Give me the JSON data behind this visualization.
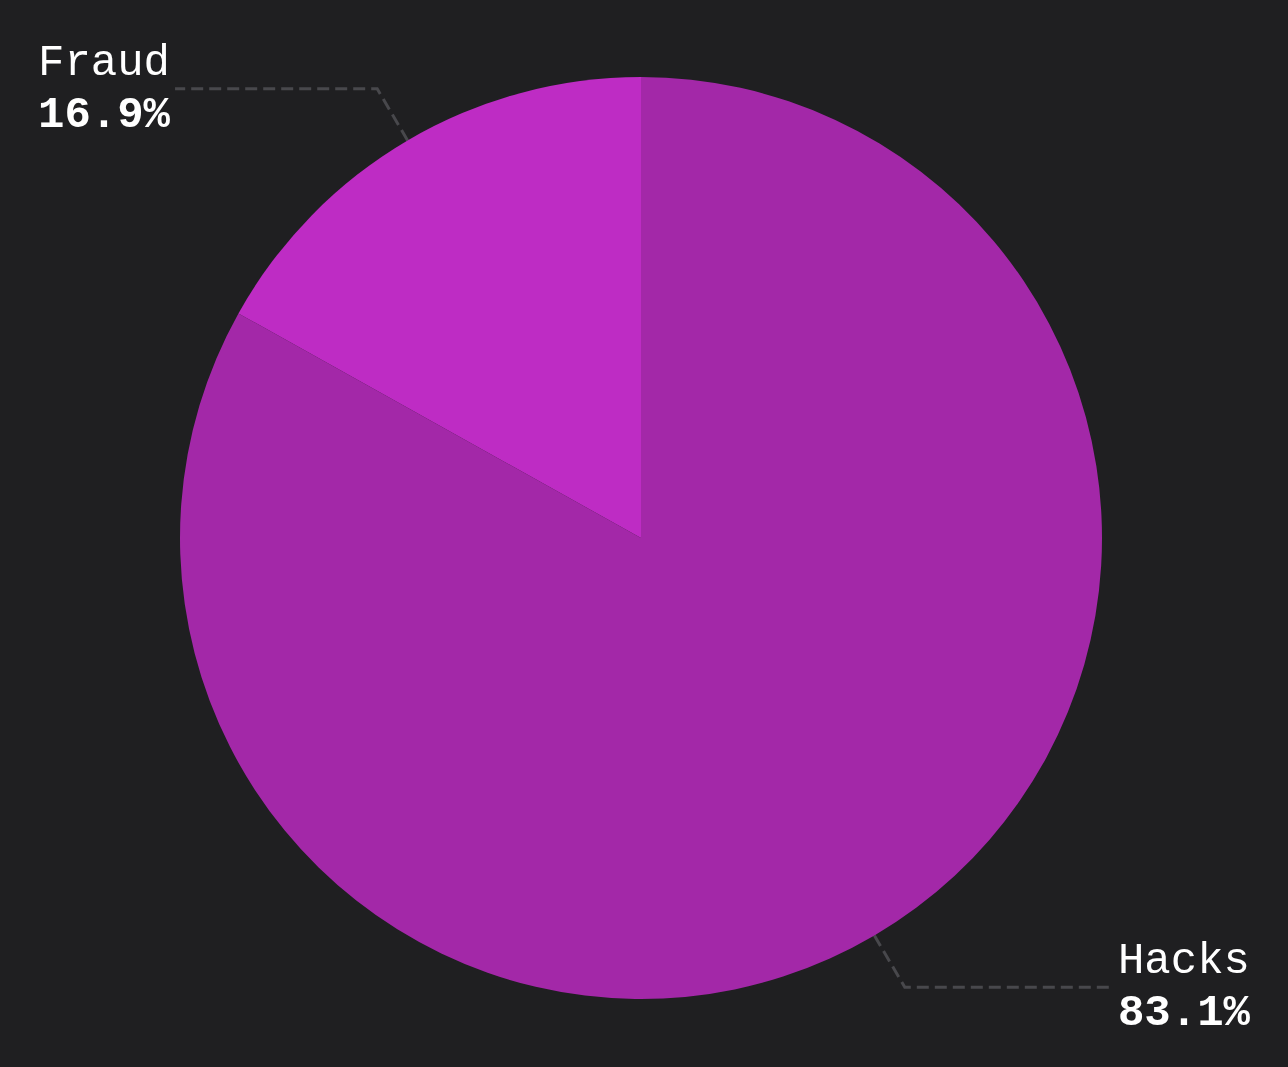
{
  "chart_data": {
    "type": "pie",
    "categories": [
      "Hacks",
      "Fraud"
    ],
    "values": [
      83.1,
      16.9
    ],
    "value_labels": [
      "83.1%",
      "16.9%"
    ],
    "colors": [
      "#a328a8",
      "#be2cc4"
    ],
    "legend": false
  }
}
